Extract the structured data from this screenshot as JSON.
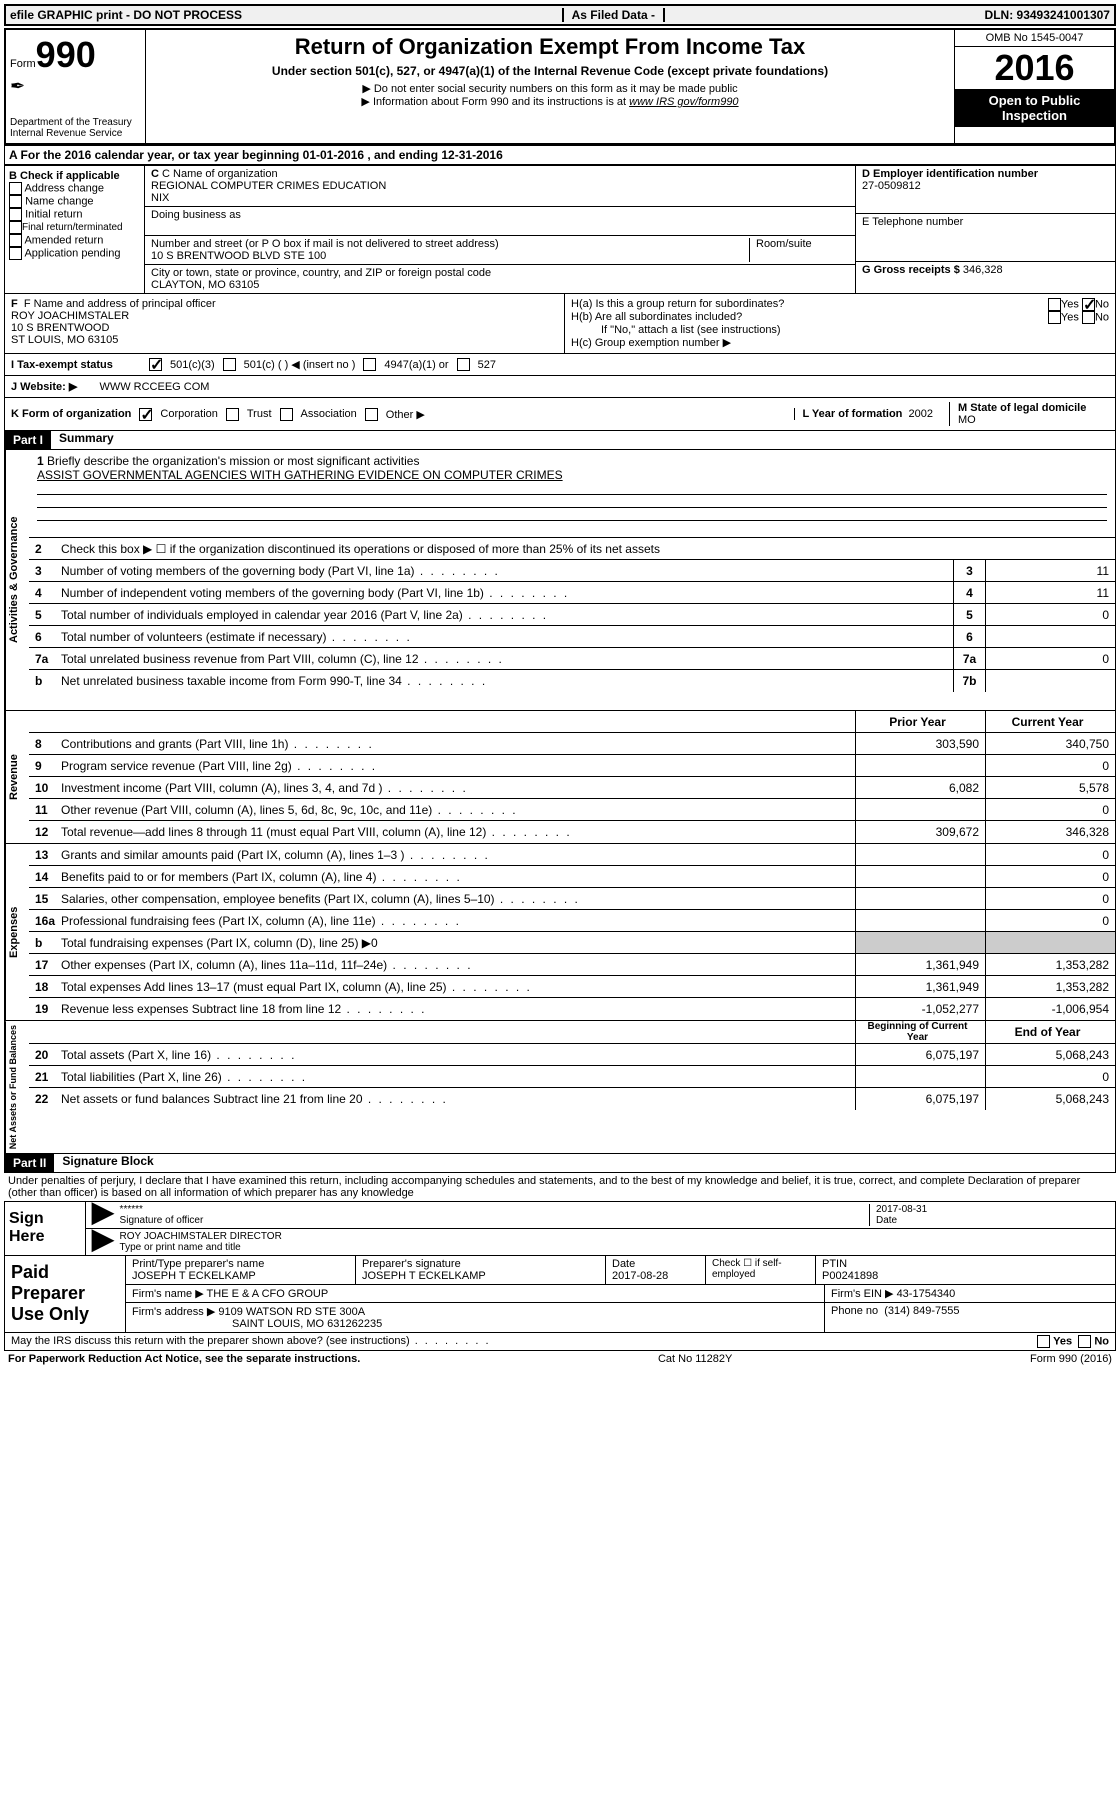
{
  "topbar": {
    "left": "efile GRAPHIC print - DO NOT PROCESS",
    "mid": "As Filed Data -",
    "right": "DLN: 93493241001307"
  },
  "header": {
    "form_label": "Form",
    "form_number": "990",
    "dept1": "Department of the Treasury",
    "dept2": "Internal Revenue Service",
    "title": "Return of Organization Exempt From Income Tax",
    "subtitle": "Under section 501(c), 527, or 4947(a)(1) of the Internal Revenue Code (except private foundations)",
    "instr1": "▶ Do not enter social security numbers on this form as it may be made public",
    "instr2_pre": "▶ Information about Form 990 and its instructions is at ",
    "instr2_link": "www IRS gov/form990",
    "omb": "OMB No 1545-0047",
    "year": "2016",
    "inspection": "Open to Public Inspection"
  },
  "rowA": "A  For the 2016 calendar year, or tax year beginning 01-01-2016   , and ending 12-31-2016",
  "boxB": {
    "header": "B Check if applicable",
    "items": [
      "Address change",
      "Name change",
      "Initial return",
      "Final return/terminated",
      "Amended return",
      "Application pending"
    ]
  },
  "boxC": {
    "label": "C Name of organization",
    "name1": "REGIONAL COMPUTER CRIMES EDUCATION",
    "name2": "NIX",
    "dba_label": "Doing business as",
    "addr_label": "Number and street (or P O  box if mail is not delivered to street address)",
    "room_label": "Room/suite",
    "addr": "10 S BRENTWOOD BLVD STE 100",
    "city_label": "City or town, state or province, country, and ZIP or foreign postal code",
    "city": "CLAYTON, MO  63105"
  },
  "boxD": {
    "label": "D Employer identification number",
    "value": "27-0509812"
  },
  "boxE": {
    "label": "E Telephone number",
    "value": ""
  },
  "boxG": {
    "label": "G Gross receipts $",
    "value": "346,328"
  },
  "boxF": {
    "label": "F  Name and address of principal officer",
    "name": "ROY JOACHIMSTALER",
    "addr1": "10 S BRENTWOOD",
    "addr2": "ST LOUIS, MO  63105"
  },
  "boxH": {
    "ha": "H(a)  Is this a group return for subordinates?",
    "hb": "H(b)  Are all subordinates included?",
    "hb_note": "If \"No,\" attach a list  (see instructions)",
    "hc": "H(c)  Group exemption number ▶",
    "yes": "Yes",
    "no": "No"
  },
  "rowI": {
    "label": "I  Tax-exempt status",
    "opts": [
      "501(c)(3)",
      "501(c) (  ) ◀ (insert no )",
      "4947(a)(1) or",
      "527"
    ]
  },
  "rowJ": {
    "label": "J  Website: ▶",
    "value": "WWW RCCEEG COM"
  },
  "rowK": {
    "label": "K Form of organization",
    "opts": [
      "Corporation",
      "Trust",
      "Association",
      "Other ▶"
    ],
    "L_label": "L Year of formation",
    "L_value": "2002",
    "M_label": "M State of legal domicile",
    "M_value": "MO"
  },
  "part1": {
    "header": "Part I",
    "title": "Summary"
  },
  "mission": {
    "num": "1",
    "label": "Briefly describe the organization's mission or most significant activities",
    "text": "ASSIST GOVERNMENTAL AGENCIES WITH GATHERING EVIDENCE ON COMPUTER CRIMES"
  },
  "line2": "Check this box ▶ ☐ if the organization discontinued its operations or disposed of more than 25% of its net assets",
  "governance_lines": [
    {
      "num": "3",
      "text": "Number of voting members of the governing body (Part VI, line 1a)",
      "box": "3",
      "val": "11"
    },
    {
      "num": "4",
      "text": "Number of independent voting members of the governing body (Part VI, line 1b)",
      "box": "4",
      "val": "11"
    },
    {
      "num": "5",
      "text": "Total number of individuals employed in calendar year 2016 (Part V, line 2a)",
      "box": "5",
      "val": "0"
    },
    {
      "num": "6",
      "text": "Total number of volunteers (estimate if necessary)",
      "box": "6",
      "val": ""
    },
    {
      "num": "7a",
      "text": "Total unrelated business revenue from Part VIII, column (C), line 12",
      "box": "7a",
      "val": "0"
    },
    {
      "num": "b",
      "text": "Net unrelated business taxable income from Form 990-T, line 34",
      "box": "7b",
      "val": ""
    }
  ],
  "two_col_header": {
    "prior": "Prior Year",
    "current": "Current Year"
  },
  "revenue_lines": [
    {
      "num": "8",
      "text": "Contributions and grants (Part VIII, line 1h)",
      "prior": "303,590",
      "current": "340,750"
    },
    {
      "num": "9",
      "text": "Program service revenue (Part VIII, line 2g)",
      "prior": "",
      "current": "0"
    },
    {
      "num": "10",
      "text": "Investment income (Part VIII, column (A), lines 3, 4, and 7d )",
      "prior": "6,082",
      "current": "5,578"
    },
    {
      "num": "11",
      "text": "Other revenue (Part VIII, column (A), lines 5, 6d, 8c, 9c, 10c, and 11e)",
      "prior": "",
      "current": "0"
    },
    {
      "num": "12",
      "text": "Total revenue—add lines 8 through 11 (must equal Part VIII, column (A), line 12)",
      "prior": "309,672",
      "current": "346,328"
    }
  ],
  "expense_lines": [
    {
      "num": "13",
      "text": "Grants and similar amounts paid (Part IX, column (A), lines 1–3 )",
      "prior": "",
      "current": "0"
    },
    {
      "num": "14",
      "text": "Benefits paid to or for members (Part IX, column (A), line 4)",
      "prior": "",
      "current": "0"
    },
    {
      "num": "15",
      "text": "Salaries, other compensation, employee benefits (Part IX, column (A), lines 5–10)",
      "prior": "",
      "current": "0"
    },
    {
      "num": "16a",
      "text": "Professional fundraising fees (Part IX, column (A), line 11e)",
      "prior": "",
      "current": "0"
    },
    {
      "num": "b",
      "text": "Total fundraising expenses (Part IX, column (D), line 25) ▶0",
      "prior": "shaded",
      "current": "shaded"
    },
    {
      "num": "17",
      "text": "Other expenses (Part IX, column (A), lines 11a–11d, 11f–24e)",
      "prior": "1,361,949",
      "current": "1,353,282"
    },
    {
      "num": "18",
      "text": "Total expenses  Add lines 13–17 (must equal Part IX, column (A), line 25)",
      "prior": "1,361,949",
      "current": "1,353,282"
    },
    {
      "num": "19",
      "text": "Revenue less expenses  Subtract line 18 from line 12",
      "prior": "-1,052,277",
      "current": "-1,006,954"
    }
  ],
  "netassets_header": {
    "begin": "Beginning of Current Year",
    "end": "End of Year"
  },
  "netassets_lines": [
    {
      "num": "20",
      "text": "Total assets (Part X, line 16)",
      "prior": "6,075,197",
      "current": "5,068,243"
    },
    {
      "num": "21",
      "text": "Total liabilities (Part X, line 26)",
      "prior": "",
      "current": "0"
    },
    {
      "num": "22",
      "text": "Net assets or fund balances  Subtract line 21 from line 20",
      "prior": "6,075,197",
      "current": "5,068,243"
    }
  ],
  "vert_labels": {
    "governance": "Activities & Governance",
    "revenue": "Revenue",
    "expenses": "Expenses",
    "netassets": "Net Assets or Fund Balances"
  },
  "part2": {
    "header": "Part II",
    "title": "Signature Block"
  },
  "sig": {
    "declaration": "Under penalties of perjury, I declare that I have examined this return, including accompanying schedules and statements, and to the best of my knowledge and belief, it is true, correct, and complete  Declaration of preparer (other than officer) is based on all information of which preparer has any knowledge",
    "sign_here": "Sign Here",
    "stars": "******",
    "sig_label": "Signature of officer",
    "date": "2017-08-31",
    "date_label": "Date",
    "name": "ROY JOACHIMSTALER  DIRECTOR",
    "name_label": "Type or print name and title"
  },
  "prep": {
    "title": "Paid Preparer Use Only",
    "r1": {
      "c1_label": "Print/Type preparer's name",
      "c1": "JOSEPH T ECKELKAMP",
      "c2_label": "Preparer's signature",
      "c2": "JOSEPH T ECKELKAMP",
      "c3_label": "Date",
      "c3": "2017-08-28",
      "c4": "Check ☐ if self-employed",
      "c5_label": "PTIN",
      "c5": "P00241898"
    },
    "r2": {
      "label": "Firm's name    ▶",
      "value": "THE E & A CFO GROUP",
      "ein_label": "Firm's EIN ▶",
      "ein": "43-1754340"
    },
    "r3": {
      "label": "Firm's address ▶",
      "value1": "9109 WATSON RD STE 300A",
      "value2": "SAINT LOUIS, MO  631262235",
      "phone_label": "Phone no",
      "phone": "(314) 849-7555"
    }
  },
  "discuss": {
    "text": "May the IRS discuss this return with the preparer shown above? (see instructions)",
    "yes": "Yes",
    "no": "No"
  },
  "footer": {
    "left": "For Paperwork Reduction Act Notice, see the separate instructions.",
    "mid": "Cat No  11282Y",
    "right": "Form 990 (2016)"
  },
  "colors": {
    "black": "#000000",
    "white": "#ffffff",
    "shaded": "#cccccc",
    "topbar_bg": "#f0f0f0"
  }
}
